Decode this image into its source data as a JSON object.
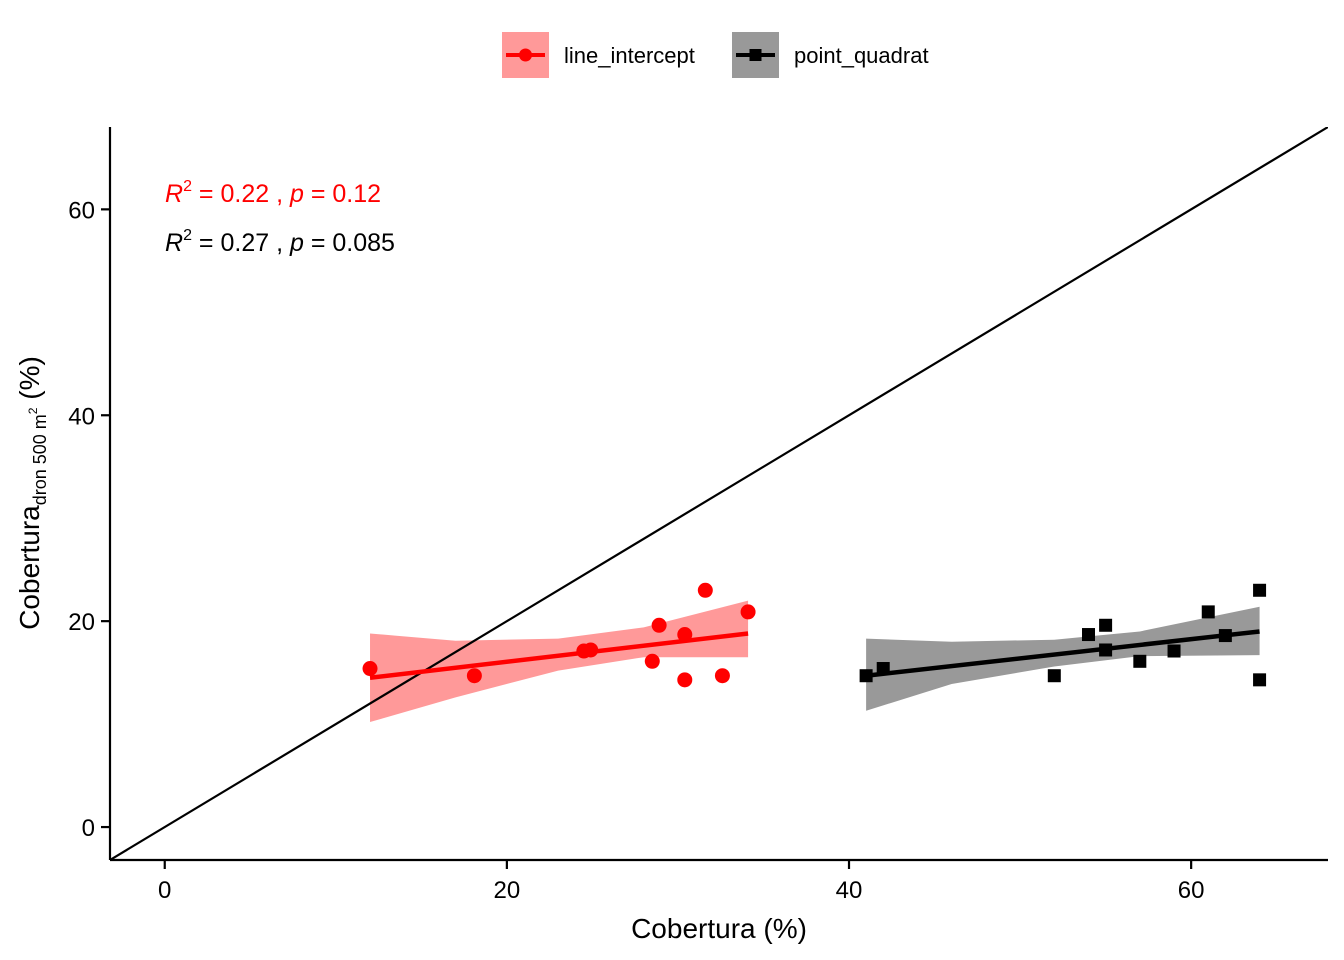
{
  "chart_data": {
    "type": "scatter",
    "xlabel": "Cobertura (%)",
    "ylabel": {
      "main": "Cobertura",
      "subscript": "dron 500 m",
      "superscript": "2",
      "suffix": " (%)"
    },
    "xlim": [
      -3.2,
      68
    ],
    "ylim": [
      -3.2,
      68
    ],
    "x_ticks": [
      0,
      20,
      40,
      60
    ],
    "y_ticks": [
      0,
      20,
      40,
      60
    ],
    "x_tick_labels": [
      "0",
      "20",
      "40",
      "60"
    ],
    "y_tick_labels": [
      "0",
      "20",
      "40",
      "60"
    ],
    "identity_line": true,
    "grid": false,
    "legend_position": "top",
    "series": [
      {
        "name": "line_intercept",
        "color": "#ff0000",
        "band_color": "#ff9999",
        "marker": "circle",
        "points": [
          [
            12.0,
            15.4
          ],
          [
            18.1,
            14.7
          ],
          [
            24.5,
            17.1
          ],
          [
            24.9,
            17.2
          ],
          [
            28.5,
            16.1
          ],
          [
            28.9,
            19.6
          ],
          [
            30.4,
            18.7
          ],
          [
            30.4,
            14.3
          ],
          [
            31.6,
            23.0
          ],
          [
            32.6,
            14.7
          ],
          [
            34.1,
            20.9
          ]
        ],
        "fit_x": [
          12.0,
          34.1
        ],
        "fit_y": [
          14.5,
          18.8
        ],
        "band_upper": [
          [
            12.0,
            18.8
          ],
          [
            17.0,
            18.1
          ],
          [
            23.0,
            18.3
          ],
          [
            28.0,
            19.4
          ],
          [
            34.1,
            22.0
          ]
        ],
        "band_lower": [
          [
            12.0,
            10.2
          ],
          [
            17.0,
            12.6
          ],
          [
            23.0,
            15.2
          ],
          [
            28.0,
            16.5
          ],
          [
            34.1,
            16.5
          ]
        ],
        "annotation": {
          "r2": "0.22",
          "p": "0.12"
        }
      },
      {
        "name": "point_quadrat",
        "color": "#000000",
        "band_color": "#999999",
        "marker": "square",
        "points": [
          [
            41.0,
            14.7
          ],
          [
            42.0,
            15.4
          ],
          [
            52.0,
            14.7
          ],
          [
            54.0,
            18.7
          ],
          [
            55.0,
            19.6
          ],
          [
            55.0,
            17.2
          ],
          [
            57.0,
            16.1
          ],
          [
            59.0,
            17.1
          ],
          [
            61.0,
            20.9
          ],
          [
            62.0,
            18.6
          ],
          [
            64.0,
            23.0
          ],
          [
            64.0,
            14.3
          ]
        ],
        "fit_x": [
          41.0,
          64.0
        ],
        "fit_y": [
          14.7,
          19.0
        ],
        "band_upper": [
          [
            41.0,
            18.3
          ],
          [
            46.0,
            18.0
          ],
          [
            52.0,
            18.2
          ],
          [
            57.0,
            19.0
          ],
          [
            64.0,
            21.4
          ]
        ],
        "band_lower": [
          [
            41.0,
            11.3
          ],
          [
            46.0,
            13.9
          ],
          [
            52.0,
            15.6
          ],
          [
            57.0,
            16.6
          ],
          [
            64.0,
            16.7
          ]
        ],
        "annotation": {
          "r2": "0.27",
          "p": "0.085"
        }
      }
    ],
    "annotation_labels": {
      "r": "R",
      "sup": "2",
      "eq": " = ",
      "sep": " , ",
      "p": "p"
    }
  }
}
